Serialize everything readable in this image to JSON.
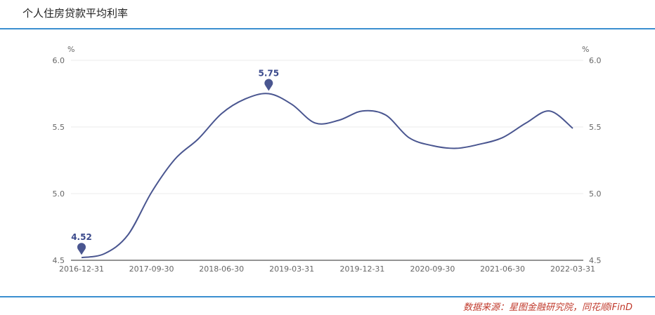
{
  "header": {
    "title": "个人住房贷款平均利率"
  },
  "footer": {
    "source": "数据来源：星图金融研究院，同花顺iFinD"
  },
  "colors": {
    "line": "#4a5690",
    "accent_rule": "#3b8fd0",
    "source_text": "#c0392b"
  },
  "chart_data": {
    "type": "line",
    "title": "个人住房贷款平均利率",
    "ylabel_left": "%",
    "ylabel_right": "%",
    "ylim": [
      4.5,
      6.0
    ],
    "yticks": [
      "4.5",
      "5.0",
      "5.5",
      "6.0"
    ],
    "yticks_right": [
      "4.5",
      "5.0",
      "5.5",
      "6.0"
    ],
    "xtick_labels": [
      "2016-12-31",
      "2017-09-30",
      "2018-06-30",
      "2019-03-31",
      "2019-12-31",
      "2020-09-30",
      "2021-06-30",
      "2022-03-31"
    ],
    "grid": true,
    "series": [
      {
        "x": [
          "2016-12-31",
          "2017-03-31",
          "2017-06-30",
          "2017-09-30",
          "2017-12-31",
          "2018-03-31",
          "2018-06-30",
          "2018-09-30",
          "2018-12-31",
          "2019-03-31",
          "2019-06-30",
          "2019-09-30",
          "2019-12-31",
          "2020-03-31",
          "2020-06-30",
          "2020-09-30",
          "2020-12-31",
          "2021-03-31",
          "2021-06-30",
          "2021-09-30",
          "2021-12-31",
          "2022-03-31"
        ],
        "values": [
          4.52,
          4.55,
          4.69,
          5.01,
          5.26,
          5.41,
          5.6,
          5.71,
          5.75,
          5.67,
          5.53,
          5.55,
          5.62,
          5.59,
          5.42,
          5.36,
          5.34,
          5.37,
          5.42,
          5.53,
          5.62,
          5.49
        ]
      }
    ],
    "annotations": [
      {
        "x": "2016-12-31",
        "value": 4.52,
        "label": "4.52"
      },
      {
        "x": "2018-12-31",
        "value": 5.75,
        "label": "5.75"
      }
    ]
  }
}
